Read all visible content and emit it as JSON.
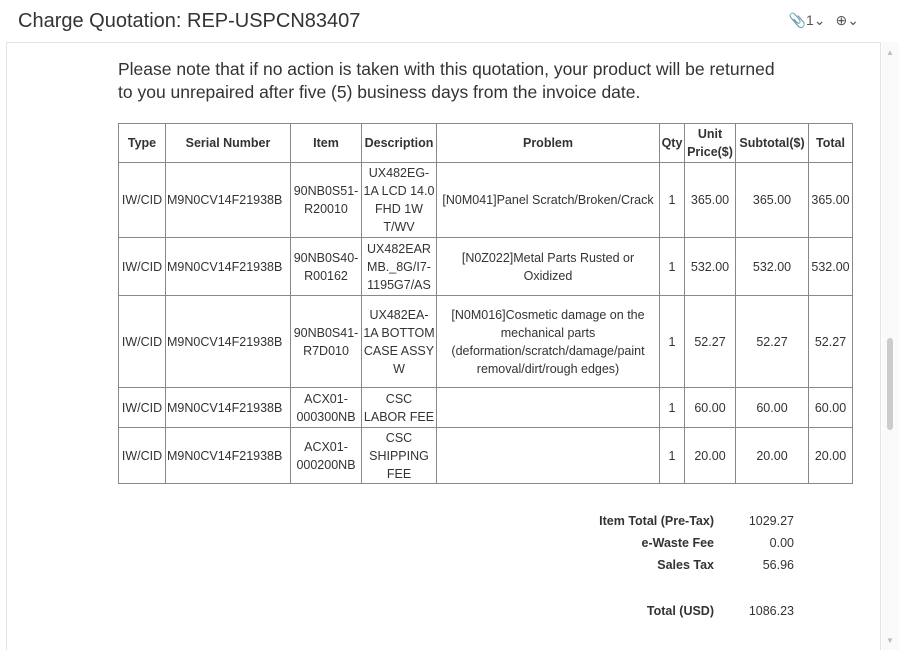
{
  "header": {
    "title": "Charge Quotation: REP-USPCN83407",
    "attachment_count": "1",
    "attachment_icon": "paperclip-icon",
    "zoom_icon": "zoom-in-icon"
  },
  "note": "Please note that if no action is taken with this quotation, your product will be returned to you unrepaired after five (5) business days from the invoice date.",
  "table": {
    "headers": [
      "Type",
      "Serial Number",
      "Item",
      "Description",
      "Problem",
      "Qty",
      "Unit Price($)",
      "Subtotal($)",
      "Total"
    ],
    "rows": [
      [
        "IW/CID",
        "M9N0CV14F21938B",
        "90NB0S51-R20010",
        "UX482EG-1A LCD 14.0 FHD 1W T/WV",
        "[N0M041]Panel Scratch/Broken/Crack",
        "1",
        "365.00",
        "365.00",
        "365.00"
      ],
      [
        "IW/CID",
        "M9N0CV14F21938B",
        "90NB0S40-R00162",
        "UX482EAR MB._8G/I7-1195G7/AS",
        "[N0Z022]Metal Parts Rusted or Oxidized",
        "1",
        "532.00",
        "532.00",
        "532.00"
      ],
      [
        "IW/CID",
        "M9N0CV14F21938B",
        "90NB0S41-R7D010",
        "UX482EA-1A BOTTOM CASE ASSY W",
        "[N0M016]Cosmetic damage on the mechanical parts (deformation/scratch/damage/paint removal/dirt/rough edges)",
        "1",
        "52.27",
        "52.27",
        "52.27"
      ],
      [
        "IW/CID",
        "M9N0CV14F21938B",
        "ACX01-000300NB",
        "CSC LABOR FEE",
        "",
        "1",
        "60.00",
        "60.00",
        "60.00"
      ],
      [
        "IW/CID",
        "M9N0CV14F21938B",
        "ACX01-000200NB",
        "CSC SHIPPING FEE",
        "",
        "1",
        "20.00",
        "20.00",
        "20.00"
      ]
    ]
  },
  "summary": [
    {
      "label": "Item Total (Pre-Tax)",
      "value": "1029.27"
    },
    {
      "label": "e-Waste Fee",
      "value": "0.00"
    },
    {
      "label": "Sales Tax",
      "value": "56.96"
    },
    {
      "label": "Total (USD)",
      "value": "1086.23"
    }
  ]
}
